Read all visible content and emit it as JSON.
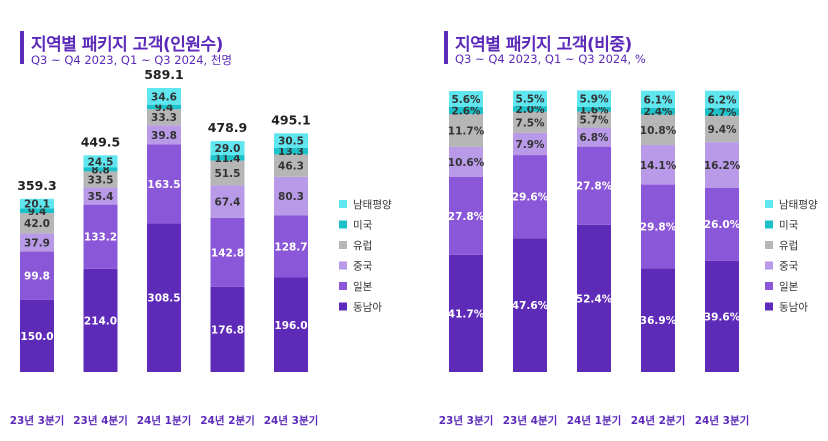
{
  "colors": {
    "동남아": "#5e2ab8",
    "일본": "#8a57d8",
    "중국": "#b99ae8",
    "유럽": "#b6b6b6",
    "미국": "#1cc2c9",
    "남태평양": "#5fe6ef",
    "title": "#5b2ab8"
  },
  "chart_data": [
    {
      "type": "bar",
      "stacked": true,
      "title": "지역별 패키지 고객(인원수)",
      "subtitle": "Q3 ~ Q4 2023, Q1 ~ Q3 2024, 천명",
      "categories": [
        "23년 3분기",
        "23년 4분기",
        "24년 1분기",
        "24년 2분기",
        "24년 3분기"
      ],
      "totals": [
        "359.3",
        "449.5",
        "589.1",
        "478.9",
        "495.1"
      ],
      "series": [
        {
          "name": "동남아",
          "values": [
            150.0,
            214.0,
            308.5,
            176.8,
            196.0
          ],
          "labels": [
            "150.0",
            "214.0",
            "308.5",
            "176.8",
            "196.0"
          ]
        },
        {
          "name": "일본",
          "values": [
            99.8,
            133.2,
            163.5,
            142.8,
            128.7
          ],
          "labels": [
            "99.8",
            "133.2",
            "163.5",
            "142.8",
            "128.7"
          ]
        },
        {
          "name": "중국",
          "values": [
            37.9,
            35.4,
            39.8,
            67.4,
            80.3
          ],
          "labels": [
            "37.9",
            "35.4",
            "39.8",
            "67.4",
            "80.3"
          ]
        },
        {
          "name": "유럽",
          "values": [
            42.0,
            33.5,
            33.3,
            51.5,
            46.3
          ],
          "labels": [
            "42.0",
            "33.5",
            "33.3",
            "51.5",
            "46.3"
          ]
        },
        {
          "name": "미국",
          "values": [
            9.4,
            8.8,
            9.4,
            11.4,
            13.3
          ],
          "labels": [
            "9.4",
            "8.8",
            "9.4",
            "11.4",
            "13.3"
          ]
        },
        {
          "name": "남태평양",
          "values": [
            20.1,
            24.5,
            34.6,
            29.0,
            30.5
          ],
          "labels": [
            "20.1",
            "24.5",
            "34.6",
            "29.0",
            "30.5"
          ]
        }
      ],
      "ylim": [
        0,
        589.1
      ],
      "legend": "right"
    },
    {
      "type": "bar",
      "stacked": true,
      "percent": true,
      "title": "지역별 패키지 고객(비중)",
      "subtitle": "Q3 ~ Q4 2023, Q1 ~ Q3 2024, %",
      "categories": [
        "23년 3분기",
        "23년 4분기",
        "24년 1분기",
        "24년 2분기",
        "24년 3분기"
      ],
      "series": [
        {
          "name": "동남아",
          "values": [
            41.7,
            47.6,
            52.4,
            36.9,
            39.6
          ],
          "labels": [
            "41.7%",
            "47.6%",
            "52.4%",
            "36.9%",
            "39.6%"
          ]
        },
        {
          "name": "일본",
          "values": [
            27.8,
            29.6,
            27.8,
            29.8,
            26.0
          ],
          "labels": [
            "27.8%",
            "29.6%",
            "27.8%",
            "29.8%",
            "26.0%"
          ]
        },
        {
          "name": "중국",
          "values": [
            10.6,
            7.9,
            6.8,
            14.1,
            16.2
          ],
          "labels": [
            "10.6%",
            "7.9%",
            "6.8%",
            "14.1%",
            "16.2%"
          ]
        },
        {
          "name": "유럽",
          "values": [
            11.7,
            7.5,
            5.7,
            10.8,
            9.4
          ],
          "labels": [
            "11.7%",
            "7.5%",
            "5.7%",
            "10.8%",
            "9.4%"
          ]
        },
        {
          "name": "미국",
          "values": [
            2.6,
            2.0,
            1.6,
            2.4,
            2.7
          ],
          "labels": [
            "2.6%",
            "2.0%",
            "1.6%",
            "2.4%",
            "2.7%"
          ]
        },
        {
          "name": "남태평양",
          "values": [
            5.6,
            5.5,
            5.9,
            6.1,
            6.2
          ],
          "labels": [
            "5.6%",
            "5.5%",
            "5.9%",
            "6.1%",
            "6.2%"
          ]
        }
      ],
      "ylim": [
        0,
        100
      ],
      "legend": "right"
    }
  ]
}
